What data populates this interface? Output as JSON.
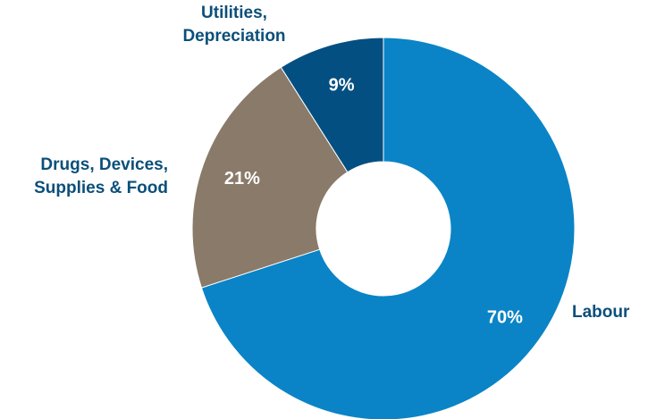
{
  "chart_data": {
    "type": "pie",
    "donut": true,
    "title": "",
    "start": "top",
    "direction": "clockwise",
    "slices": [
      {
        "category": [
          "Labour"
        ],
        "value": 70,
        "label": "70%",
        "color": "#0a84c6"
      },
      {
        "category": [
          "Drugs, Devices,",
          "Supplies & Food"
        ],
        "value": 21,
        "label": "21%",
        "color": "#8a7a69"
      },
      {
        "category": [
          "Utilities,",
          "Depreciation"
        ],
        "value": 9,
        "label": "9%",
        "color": "#044f82"
      }
    ],
    "legend": "none"
  }
}
